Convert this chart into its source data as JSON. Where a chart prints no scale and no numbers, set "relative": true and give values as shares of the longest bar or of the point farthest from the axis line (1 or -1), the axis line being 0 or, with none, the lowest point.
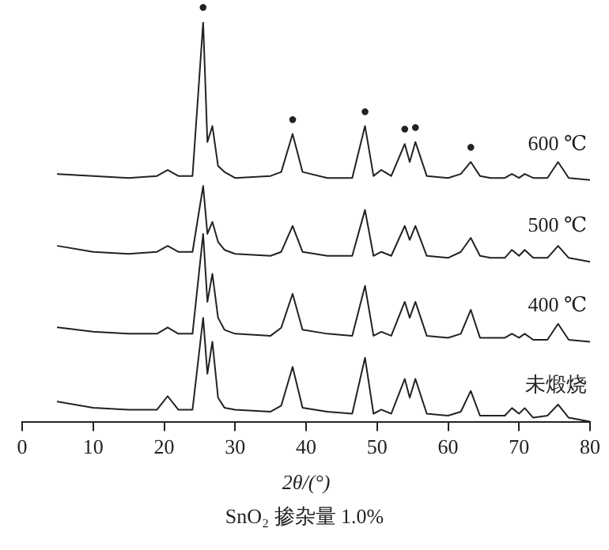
{
  "chart_data": {
    "type": "line",
    "relative": true,
    "xlabel": "2θ/(°)",
    "xlim": [
      0,
      80
    ],
    "xticks": [
      0,
      10,
      20,
      30,
      40,
      50,
      60,
      70,
      80
    ],
    "grid": false,
    "legend": false,
    "marker": "none",
    "line_style": "solid",
    "tick_labels": "x",
    "x": [
      5,
      10,
      15,
      19,
      20.5,
      22,
      24,
      25.5,
      26.1,
      26.8,
      27.6,
      28.5,
      30,
      35,
      36.5,
      38.1,
      39.5,
      43,
      46.5,
      48.3,
      49.5,
      50.6,
      52,
      53.9,
      54.6,
      55.4,
      57,
      60,
      61.8,
      63.2,
      64.5,
      66,
      68,
      69,
      70,
      70.8,
      72,
      74,
      75.5,
      77,
      80
    ],
    "series": [
      {
        "name": "600 ℃",
        "color": "#222222",
        "values": [
          0.62,
          0.615,
          0.61,
          0.615,
          0.63,
          0.615,
          0.615,
          1.0,
          0.7,
          0.74,
          0.64,
          0.625,
          0.61,
          0.615,
          0.625,
          0.72,
          0.625,
          0.61,
          0.61,
          0.74,
          0.615,
          0.63,
          0.615,
          0.695,
          0.65,
          0.7,
          0.615,
          0.61,
          0.62,
          0.65,
          0.615,
          0.61,
          0.61,
          0.62,
          0.61,
          0.62,
          0.61,
          0.61,
          0.65,
          0.61,
          0.605
        ]
      },
      {
        "name": "500 ℃",
        "color": "#222222",
        "values": [
          0.44,
          0.425,
          0.42,
          0.425,
          0.44,
          0.425,
          0.425,
          0.59,
          0.47,
          0.5,
          0.45,
          0.43,
          0.42,
          0.415,
          0.425,
          0.49,
          0.425,
          0.415,
          0.415,
          0.53,
          0.415,
          0.425,
          0.415,
          0.49,
          0.455,
          0.49,
          0.415,
          0.41,
          0.425,
          0.46,
          0.415,
          0.41,
          0.41,
          0.43,
          0.415,
          0.43,
          0.41,
          0.41,
          0.44,
          0.41,
          0.4
        ]
      },
      {
        "name": "400 ℃",
        "color": "#222222",
        "values": [
          0.236,
          0.225,
          0.22,
          0.22,
          0.236,
          0.22,
          0.22,
          0.47,
          0.3,
          0.37,
          0.26,
          0.23,
          0.22,
          0.215,
          0.235,
          0.32,
          0.23,
          0.22,
          0.215,
          0.34,
          0.215,
          0.225,
          0.215,
          0.3,
          0.26,
          0.3,
          0.215,
          0.21,
          0.22,
          0.28,
          0.21,
          0.21,
          0.21,
          0.22,
          0.21,
          0.22,
          0.205,
          0.205,
          0.245,
          0.205,
          0.2
        ]
      },
      {
        "name": "未煅烧",
        "color": "#222222",
        "values": [
          0.05,
          0.035,
          0.03,
          0.03,
          0.064,
          0.03,
          0.03,
          0.26,
          0.12,
          0.2,
          0.06,
          0.035,
          0.03,
          0.025,
          0.04,
          0.137,
          0.035,
          0.025,
          0.02,
          0.16,
          0.02,
          0.03,
          0.02,
          0.107,
          0.06,
          0.107,
          0.02,
          0.015,
          0.025,
          0.077,
          0.015,
          0.015,
          0.015,
          0.034,
          0.02,
          0.034,
          0.01,
          0.015,
          0.043,
          0.01,
          0.0
        ]
      }
    ],
    "annotations": [
      {
        "text": "●",
        "x": 25.5,
        "y": 1.0
      },
      {
        "text": "●",
        "x": 38.1,
        "y": 0.72
      },
      {
        "text": "●",
        "x": 48.3,
        "y": 0.74
      },
      {
        "text": "●",
        "x": 53.9,
        "y": 0.695
      },
      {
        "text": "●",
        "x": 55.4,
        "y": 0.7
      },
      {
        "text": "●",
        "x": 63.2,
        "y": 0.65
      },
      "SnO₂ 掺杂量 1.0%"
    ]
  }
}
